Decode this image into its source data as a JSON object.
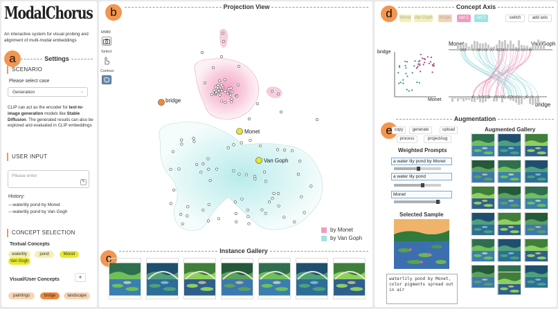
{
  "app": {
    "title": "ModalChorus",
    "description": "An interactive system for visual probing and alignment of multi-modal embeddings"
  },
  "badges": [
    "a",
    "b",
    "c",
    "d",
    "e"
  ],
  "settings": {
    "heading": "Settings",
    "scenario_title": "SCENARIO",
    "select_label": "Please select case",
    "select_value": "Generation",
    "description_pre": "CLIP can act as the encoder for ",
    "description_bold": "text-to-image generation",
    "description_mid": " models like ",
    "description_bold2": "Stable Diffusion",
    "description_post": ". The generated results can also be explored and evaluated in CLIP embeddings",
    "user_input_title": "USER INPUT",
    "input_placeholder": "Please enter",
    "history_label": "History:",
    "history": [
      "---waterlily pond by Monet",
      "---waterlily pond by Van Gogh"
    ],
    "concept_selection_title": "CONCEPT SELECTION",
    "textual_concepts_label": "Textual Concepts",
    "textual_concepts": [
      "waterlily",
      "pond",
      "Monet",
      "Van Gogh"
    ],
    "visual_concepts_label": "Visual/User Concepts",
    "add_label": "+",
    "visual_concepts": [
      "paintings",
      "bridge",
      "landscape"
    ]
  },
  "projection": {
    "heading": "Projection View",
    "tools": [
      "MMM",
      "Select",
      "Contour"
    ],
    "labels": {
      "bridge": "bridge",
      "monet": "Monet",
      "vangogh": "Van Goph"
    },
    "legend": [
      {
        "label": "by Monet",
        "color": "#f29bbf"
      },
      {
        "label": "by Van Goph",
        "color": "#9fe3e3"
      }
    ]
  },
  "gallery": {
    "heading": "Instance Gallery",
    "count": 7
  },
  "concept_axis": {
    "heading": "Concept Axis",
    "chips": [
      {
        "label": "Monet",
        "color": "#f3f0b3"
      },
      {
        "label": "Van Goph",
        "color": "#f3f0b3"
      },
      {
        "label": "bridge",
        "color": "#f7d4b3"
      },
      {
        "label": "set 1",
        "color": "#f29bbf"
      },
      {
        "label": "set 2",
        "color": "#9fe3e3"
      }
    ],
    "switch_label": "switch",
    "add_axis_label": "add axis",
    "scatter_y_label": "bridge",
    "scatter_x_label": "Monet",
    "parallel_left": "Monet",
    "parallel_right": "Van Goph",
    "parallel_bottom": "bridge"
  },
  "augmentation": {
    "heading": "Augmentation",
    "buttons": [
      "copy",
      "generate",
      "upload",
      "process",
      "projectAug"
    ],
    "weighted_prompts_label": "Weighted Prompts",
    "prompts": [
      {
        "text": "a water lily pond by Monet",
        "weight": 0.5
      },
      {
        "text": "a water lily pond",
        "weight": 0.6
      },
      {
        "text": "Monet",
        "weight": 0.93
      }
    ],
    "selected_sample_label": "Selected Sample",
    "output_text": "waterlily pond by Monet, color pigments spread out in air",
    "augmented_gallery_label": "Augmented Gallery"
  },
  "colors": {
    "accent": "#f29650",
    "monet": "#f29bbf",
    "vangogh": "#9fe3e3",
    "marker": "#e6e62a"
  }
}
